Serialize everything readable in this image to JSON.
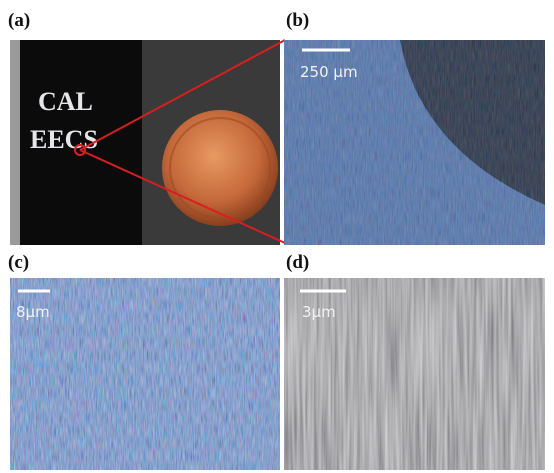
{
  "panels": [
    {
      "label": "(a)",
      "text": [
        "CAL",
        "EECS"
      ]
    },
    {
      "label": "(b)",
      "scale_bar": "250 µm"
    },
    {
      "label": "(c)",
      "scale_bar": "8µm"
    },
    {
      "label": "(d)",
      "scale_bar": "3µm"
    }
  ]
}
